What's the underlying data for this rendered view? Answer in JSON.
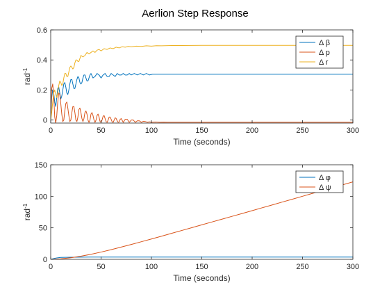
{
  "figure": {
    "title": "Aerlion Step Response"
  },
  "chart_data": [
    {
      "type": "line",
      "xlabel": "Time (seconds)",
      "ylabel": "rad",
      "ylabel_sup": "-1",
      "xlim": [
        0,
        300
      ],
      "ylim": [
        -0.02,
        0.6
      ],
      "xticks": [
        "0",
        "50",
        "100",
        "150",
        "200",
        "250",
        "300"
      ],
      "yticks": [
        "0",
        "0.2",
        "0.4",
        "0.6"
      ],
      "grid": false,
      "legend_position": "top-right",
      "series": [
        {
          "name": "Δ β",
          "color": "#0072BD",
          "x": [
            0,
            1,
            2,
            3,
            4,
            5,
            6,
            7,
            8,
            9,
            10,
            11,
            12,
            13,
            14,
            15,
            16,
            17,
            18,
            19,
            20,
            21,
            22,
            23,
            24,
            25,
            26,
            27,
            28,
            29,
            30,
            31,
            32,
            33,
            34,
            35,
            36,
            37,
            38,
            39,
            40,
            42,
            44,
            46,
            48,
            50,
            52,
            54,
            56,
            58,
            60,
            62,
            64,
            66,
            68,
            70,
            72,
            74,
            76,
            78,
            80,
            83,
            86,
            89,
            92,
            95,
            98,
            101,
            104,
            107,
            110,
            115,
            120,
            125,
            130,
            135,
            140,
            150,
            170,
            200,
            250,
            300
          ],
          "values": [
            0.0,
            0.15,
            0.2,
            0.18,
            0.12,
            0.09,
            0.15,
            0.21,
            0.22,
            0.18,
            0.14,
            0.16,
            0.2,
            0.24,
            0.25,
            0.22,
            0.18,
            0.17,
            0.2,
            0.24,
            0.27,
            0.27,
            0.24,
            0.21,
            0.21,
            0.24,
            0.27,
            0.29,
            0.28,
            0.25,
            0.24,
            0.25,
            0.28,
            0.3,
            0.3,
            0.28,
            0.26,
            0.26,
            0.28,
            0.3,
            0.31,
            0.28,
            0.29,
            0.31,
            0.3,
            0.28,
            0.3,
            0.31,
            0.29,
            0.29,
            0.31,
            0.3,
            0.29,
            0.31,
            0.3,
            0.3,
            0.31,
            0.3,
            0.3,
            0.31,
            0.3,
            0.31,
            0.3,
            0.31,
            0.3,
            0.31,
            0.3,
            0.305,
            0.305,
            0.305,
            0.305,
            0.305,
            0.305,
            0.305,
            0.305,
            0.305,
            0.305,
            0.305,
            0.305,
            0.305,
            0.305,
            0.305
          ]
        },
        {
          "name": "Δ p",
          "color": "#D95319",
          "x": [
            0,
            1,
            2,
            3,
            4,
            5,
            6,
            7,
            8,
            9,
            10,
            11,
            12,
            13,
            14,
            15,
            16,
            17,
            18,
            19,
            20,
            21,
            22,
            23,
            24,
            25,
            26,
            27,
            28,
            29,
            30,
            31,
            32,
            33,
            34,
            35,
            36,
            37,
            38,
            39,
            40,
            41,
            42,
            43,
            44,
            45,
            46,
            47,
            48,
            49,
            50,
            51,
            52,
            53,
            54,
            55,
            56,
            57,
            58,
            59,
            60,
            61,
            62,
            63,
            64,
            65,
            66,
            67,
            68,
            69,
            70,
            72,
            74,
            76,
            78,
            80,
            82,
            84,
            86,
            88,
            90,
            92,
            94,
            96,
            98,
            100,
            104,
            108,
            112,
            116,
            120,
            130,
            150,
            200,
            250,
            300
          ],
          "values": [
            0.0,
            0.21,
            0.24,
            0.16,
            0.02,
            -0.02,
            0.03,
            0.12,
            0.18,
            0.17,
            0.11,
            0.04,
            -0.01,
            0.0,
            0.06,
            0.11,
            0.12,
            0.08,
            0.03,
            -0.01,
            0.0,
            0.05,
            0.09,
            0.09,
            0.05,
            0.0,
            -0.01,
            0.02,
            0.07,
            0.08,
            0.05,
            0.01,
            -0.01,
            0.01,
            0.05,
            0.06,
            0.04,
            0.0,
            -0.015,
            0.0,
            0.04,
            0.05,
            0.03,
            0.0,
            -0.015,
            0.0,
            0.03,
            0.04,
            0.02,
            -0.01,
            -0.015,
            0.0,
            0.025,
            0.03,
            0.01,
            -0.01,
            -0.015,
            0.0,
            0.02,
            0.02,
            0.005,
            -0.012,
            -0.015,
            0.0,
            0.015,
            0.01,
            -0.005,
            -0.015,
            -0.012,
            0.005,
            0.01,
            -0.015,
            0.005,
            0.005,
            -0.015,
            0.0,
            0.0,
            -0.015,
            -0.005,
            -0.005,
            -0.015,
            -0.008,
            -0.01,
            -0.015,
            -0.012,
            -0.015,
            -0.013,
            -0.015,
            -0.014,
            -0.015,
            -0.015,
            -0.015,
            -0.015,
            -0.015,
            -0.015,
            -0.015
          ]
        },
        {
          "name": "Δ r",
          "color": "#EDB120",
          "x": [
            0,
            1,
            2,
            3,
            4,
            5,
            6,
            7,
            8,
            9,
            10,
            11,
            12,
            13,
            14,
            15,
            16,
            17,
            18,
            19,
            20,
            21,
            22,
            23,
            24,
            25,
            26,
            27,
            28,
            29,
            30,
            32,
            34,
            36,
            38,
            40,
            42,
            44,
            46,
            48,
            50,
            53,
            56,
            59,
            62,
            65,
            68,
            71,
            74,
            77,
            80,
            85,
            90,
            95,
            100,
            105,
            110,
            120,
            130,
            150,
            170,
            200,
            250,
            300
          ],
          "values": [
            0.0,
            0.05,
            0.12,
            0.18,
            0.2,
            0.17,
            0.15,
            0.18,
            0.23,
            0.26,
            0.25,
            0.23,
            0.24,
            0.28,
            0.31,
            0.31,
            0.29,
            0.29,
            0.32,
            0.35,
            0.36,
            0.35,
            0.34,
            0.35,
            0.38,
            0.4,
            0.4,
            0.39,
            0.39,
            0.41,
            0.43,
            0.42,
            0.43,
            0.45,
            0.44,
            0.45,
            0.46,
            0.45,
            0.465,
            0.47,
            0.46,
            0.475,
            0.47,
            0.48,
            0.475,
            0.485,
            0.48,
            0.488,
            0.485,
            0.49,
            0.488,
            0.492,
            0.49,
            0.494,
            0.492,
            0.495,
            0.494,
            0.496,
            0.496,
            0.497,
            0.497,
            0.497,
            0.497,
            0.497
          ]
        }
      ]
    },
    {
      "type": "line",
      "xlabel": "Time (seconds)",
      "ylabel": "rad",
      "ylabel_sup": "-1",
      "xlim": [
        0,
        300
      ],
      "ylim": [
        0,
        150
      ],
      "xticks": [
        "0",
        "50",
        "100",
        "150",
        "200",
        "250",
        "300"
      ],
      "yticks": [
        "0",
        "50",
        "100",
        "150"
      ],
      "grid": false,
      "legend_position": "top-right",
      "series": [
        {
          "name": "Δ φ",
          "color": "#0072BD",
          "x": [
            0,
            5,
            10,
            20,
            30,
            50,
            100,
            150,
            200,
            250,
            300
          ],
          "values": [
            0,
            2.0,
            3.0,
            3.3,
            3.5,
            3.6,
            3.6,
            3.6,
            3.6,
            3.6,
            3.6
          ]
        },
        {
          "name": "Δ ψ",
          "color": "#D95319",
          "x": [
            0,
            10,
            20,
            30,
            40,
            50,
            60,
            70,
            80,
            90,
            100,
            110,
            120,
            130,
            140,
            150,
            160,
            170,
            180,
            190,
            200,
            210,
            220,
            230,
            240,
            250,
            260,
            270,
            280,
            290,
            300
          ],
          "values": [
            0,
            0.8,
            2.5,
            5.0,
            8.0,
            11.5,
            15.3,
            19.4,
            23.6,
            27.9,
            32.3,
            36.7,
            41.2,
            45.7,
            50.2,
            54.7,
            59.2,
            63.7,
            68.2,
            72.7,
            77.2,
            81.8,
            86.3,
            90.9,
            95.4,
            100.0,
            104.6,
            109.2,
            113.7,
            118.3,
            122.9
          ]
        }
      ]
    }
  ]
}
